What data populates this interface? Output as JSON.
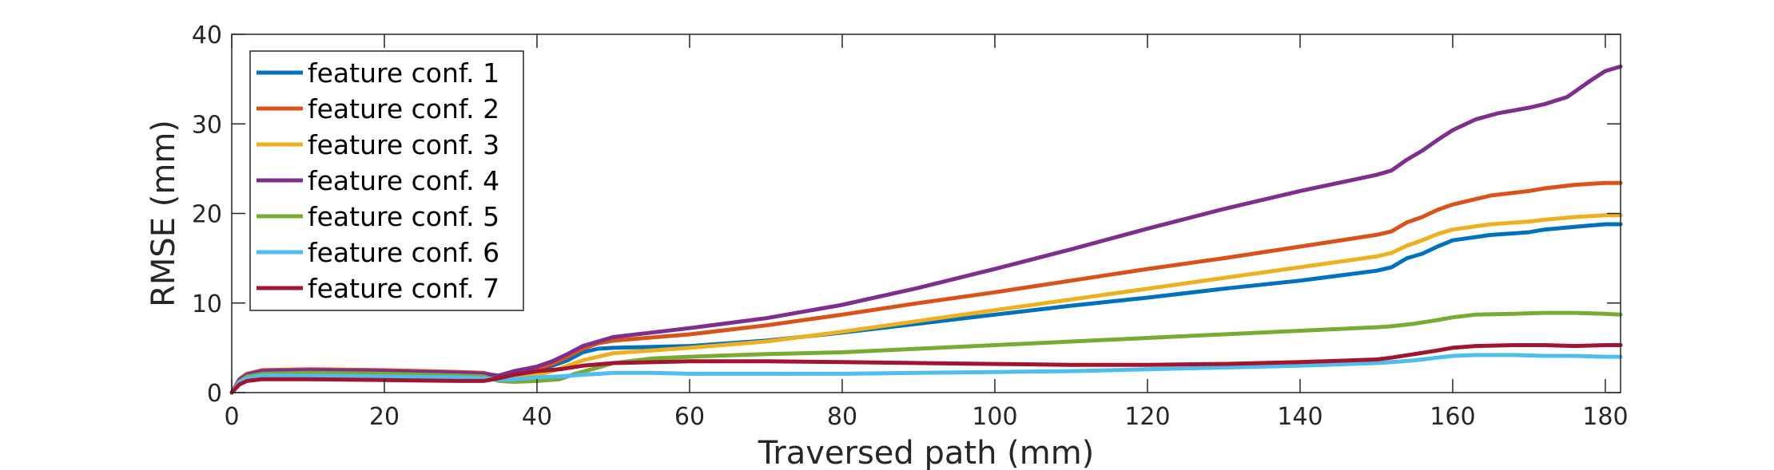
{
  "chart_data": {
    "type": "line",
    "xlabel": "Traversed path (mm)",
    "ylabel": "RMSE (mm)",
    "xlim": [
      0,
      182
    ],
    "ylim": [
      0,
      40
    ],
    "xticks": [
      0,
      20,
      40,
      60,
      80,
      100,
      120,
      140,
      160,
      180
    ],
    "yticks": [
      0,
      10,
      20,
      30,
      40
    ],
    "grid": false,
    "legend_position": "top-left",
    "series": [
      {
        "name": "feature conf. 1",
        "color": "#0072BD",
        "points": [
          [
            0,
            0
          ],
          [
            1,
            1.2
          ],
          [
            2,
            1.7
          ],
          [
            4,
            2
          ],
          [
            10,
            2.1
          ],
          [
            20,
            2
          ],
          [
            30,
            1.9
          ],
          [
            33,
            1.9
          ],
          [
            35,
            1.6
          ],
          [
            37,
            2.2
          ],
          [
            40,
            2.6
          ],
          [
            42,
            3
          ],
          [
            44,
            3.6
          ],
          [
            46,
            4.5
          ],
          [
            48,
            4.9
          ],
          [
            50,
            5
          ],
          [
            60,
            5.2
          ],
          [
            70,
            5.8
          ],
          [
            80,
            6.7
          ],
          [
            90,
            7.7
          ],
          [
            100,
            8.7
          ],
          [
            110,
            9.7
          ],
          [
            120,
            10.6
          ],
          [
            130,
            11.6
          ],
          [
            140,
            12.5
          ],
          [
            150,
            13.6
          ],
          [
            152,
            14
          ],
          [
            154,
            15
          ],
          [
            156,
            15.5
          ],
          [
            158,
            16.3
          ],
          [
            160,
            17
          ],
          [
            165,
            17.6
          ],
          [
            170,
            17.9
          ],
          [
            172,
            18.2
          ],
          [
            176,
            18.5
          ],
          [
            180,
            18.8
          ],
          [
            182,
            18.8
          ]
        ]
      },
      {
        "name": "feature conf. 2",
        "color": "#D95319",
        "points": [
          [
            0,
            0
          ],
          [
            1,
            1.5
          ],
          [
            2,
            2.1
          ],
          [
            4,
            2.5
          ],
          [
            10,
            2.6
          ],
          [
            20,
            2.5
          ],
          [
            30,
            2.3
          ],
          [
            33,
            2.2
          ],
          [
            35,
            1.8
          ],
          [
            37,
            2.4
          ],
          [
            40,
            2.7
          ],
          [
            42,
            3.2
          ],
          [
            44,
            4
          ],
          [
            46,
            4.9
          ],
          [
            48,
            5.5
          ],
          [
            50,
            5.8
          ],
          [
            60,
            6.5
          ],
          [
            70,
            7.5
          ],
          [
            80,
            8.7
          ],
          [
            90,
            10
          ],
          [
            100,
            11.2
          ],
          [
            110,
            12.5
          ],
          [
            120,
            13.8
          ],
          [
            130,
            15
          ],
          [
            140,
            16.3
          ],
          [
            150,
            17.6
          ],
          [
            152,
            18
          ],
          [
            154,
            19
          ],
          [
            156,
            19.6
          ],
          [
            158,
            20.4
          ],
          [
            160,
            21
          ],
          [
            165,
            22
          ],
          [
            170,
            22.5
          ],
          [
            172,
            22.8
          ],
          [
            176,
            23.2
          ],
          [
            180,
            23.4
          ],
          [
            182,
            23.4
          ]
        ]
      },
      {
        "name": "feature conf. 3",
        "color": "#EDB120",
        "points": [
          [
            0,
            0
          ],
          [
            1,
            1.3
          ],
          [
            2,
            1.9
          ],
          [
            4,
            2.3
          ],
          [
            10,
            2.4
          ],
          [
            20,
            2.3
          ],
          [
            30,
            2.1
          ],
          [
            33,
            2
          ],
          [
            35,
            1.8
          ],
          [
            37,
            1.8
          ],
          [
            40,
            2
          ],
          [
            42,
            2.4
          ],
          [
            44,
            3
          ],
          [
            46,
            3.6
          ],
          [
            48,
            4
          ],
          [
            50,
            4.4
          ],
          [
            60,
            5
          ],
          [
            70,
            5.7
          ],
          [
            80,
            6.8
          ],
          [
            90,
            8
          ],
          [
            100,
            9.2
          ],
          [
            110,
            10.4
          ],
          [
            120,
            11.6
          ],
          [
            130,
            12.8
          ],
          [
            140,
            14
          ],
          [
            150,
            15.2
          ],
          [
            152,
            15.6
          ],
          [
            154,
            16.4
          ],
          [
            156,
            17
          ],
          [
            158,
            17.7
          ],
          [
            160,
            18.2
          ],
          [
            165,
            18.8
          ],
          [
            170,
            19.1
          ],
          [
            172,
            19.3
          ],
          [
            176,
            19.6
          ],
          [
            180,
            19.8
          ],
          [
            182,
            19.8
          ]
        ]
      },
      {
        "name": "feature conf. 4",
        "color": "#7E2F8E",
        "points": [
          [
            0,
            0
          ],
          [
            1,
            1.4
          ],
          [
            2,
            2
          ],
          [
            4,
            2.4
          ],
          [
            10,
            2.5
          ],
          [
            20,
            2.4
          ],
          [
            30,
            2.2
          ],
          [
            33,
            2.1
          ],
          [
            35,
            1.9
          ],
          [
            37,
            2.4
          ],
          [
            40,
            2.9
          ],
          [
            42,
            3.5
          ],
          [
            44,
            4.3
          ],
          [
            46,
            5.2
          ],
          [
            48,
            5.7
          ],
          [
            50,
            6.2
          ],
          [
            55,
            6.7
          ],
          [
            60,
            7.2
          ],
          [
            70,
            8.3
          ],
          [
            80,
            9.8
          ],
          [
            90,
            11.7
          ],
          [
            100,
            13.8
          ],
          [
            110,
            16
          ],
          [
            120,
            18.3
          ],
          [
            130,
            20.5
          ],
          [
            140,
            22.5
          ],
          [
            150,
            24.3
          ],
          [
            152,
            24.8
          ],
          [
            154,
            26
          ],
          [
            156,
            27
          ],
          [
            158,
            28.2
          ],
          [
            160,
            29.3
          ],
          [
            163,
            30.5
          ],
          [
            166,
            31.2
          ],
          [
            170,
            31.8
          ],
          [
            172,
            32.2
          ],
          [
            175,
            33
          ],
          [
            178,
            34.8
          ],
          [
            180,
            35.9
          ],
          [
            182,
            36.4
          ]
        ]
      },
      {
        "name": "feature conf. 5",
        "color": "#77AC30",
        "points": [
          [
            0,
            0
          ],
          [
            1,
            1.2
          ],
          [
            2,
            1.8
          ],
          [
            4,
            2.1
          ],
          [
            10,
            2.2
          ],
          [
            20,
            2.1
          ],
          [
            30,
            1.9
          ],
          [
            33,
            1.8
          ],
          [
            35,
            1.3
          ],
          [
            37,
            1.2
          ],
          [
            40,
            1.3
          ],
          [
            43,
            1.5
          ],
          [
            45,
            2.1
          ],
          [
            48,
            2.8
          ],
          [
            50,
            3.3
          ],
          [
            55,
            3.8
          ],
          [
            60,
            4
          ],
          [
            70,
            4.3
          ],
          [
            80,
            4.5
          ],
          [
            90,
            4.9
          ],
          [
            100,
            5.3
          ],
          [
            110,
            5.7
          ],
          [
            120,
            6.1
          ],
          [
            130,
            6.5
          ],
          [
            140,
            6.9
          ],
          [
            150,
            7.3
          ],
          [
            152,
            7.4
          ],
          [
            155,
            7.7
          ],
          [
            158,
            8.1
          ],
          [
            160,
            8.4
          ],
          [
            163,
            8.7
          ],
          [
            168,
            8.8
          ],
          [
            172,
            8.9
          ],
          [
            176,
            8.9
          ],
          [
            180,
            8.8
          ],
          [
            182,
            8.7
          ]
        ]
      },
      {
        "name": "feature conf. 6",
        "color": "#4DBEEE",
        "points": [
          [
            0,
            0
          ],
          [
            1,
            1.2
          ],
          [
            2,
            1.6
          ],
          [
            4,
            1.9
          ],
          [
            10,
            1.9
          ],
          [
            20,
            1.8
          ],
          [
            30,
            1.7
          ],
          [
            33,
            1.6
          ],
          [
            35,
            1.4
          ],
          [
            37,
            1.5
          ],
          [
            40,
            1.7
          ],
          [
            43,
            1.8
          ],
          [
            46,
            2
          ],
          [
            50,
            2.2
          ],
          [
            55,
            2.2
          ],
          [
            60,
            2.1
          ],
          [
            70,
            2.1
          ],
          [
            80,
            2.1
          ],
          [
            90,
            2.2
          ],
          [
            100,
            2.3
          ],
          [
            110,
            2.4
          ],
          [
            120,
            2.6
          ],
          [
            130,
            2.8
          ],
          [
            140,
            3
          ],
          [
            150,
            3.3
          ],
          [
            152,
            3.4
          ],
          [
            155,
            3.6
          ],
          [
            158,
            3.9
          ],
          [
            160,
            4.1
          ],
          [
            163,
            4.2
          ],
          [
            168,
            4.2
          ],
          [
            172,
            4.1
          ],
          [
            176,
            4.1
          ],
          [
            180,
            4
          ],
          [
            182,
            4
          ]
        ]
      },
      {
        "name": "feature conf. 7",
        "color": "#A2142F",
        "points": [
          [
            0,
            0
          ],
          [
            1,
            0.9
          ],
          [
            2,
            1.3
          ],
          [
            4,
            1.5
          ],
          [
            10,
            1.5
          ],
          [
            20,
            1.4
          ],
          [
            30,
            1.3
          ],
          [
            33,
            1.3
          ],
          [
            35,
            1.6
          ],
          [
            37,
            2
          ],
          [
            40,
            2.4
          ],
          [
            43,
            2.6
          ],
          [
            46,
            3
          ],
          [
            50,
            3.3
          ],
          [
            60,
            3.5
          ],
          [
            70,
            3.5
          ],
          [
            80,
            3.4
          ],
          [
            90,
            3.3
          ],
          [
            100,
            3.2
          ],
          [
            110,
            3.1
          ],
          [
            120,
            3.1
          ],
          [
            130,
            3.2
          ],
          [
            140,
            3.4
          ],
          [
            150,
            3.7
          ],
          [
            152,
            3.9
          ],
          [
            155,
            4.3
          ],
          [
            158,
            4.7
          ],
          [
            160,
            5
          ],
          [
            163,
            5.2
          ],
          [
            168,
            5.3
          ],
          [
            172,
            5.3
          ],
          [
            176,
            5.2
          ],
          [
            180,
            5.3
          ],
          [
            182,
            5.3
          ]
        ]
      }
    ]
  }
}
